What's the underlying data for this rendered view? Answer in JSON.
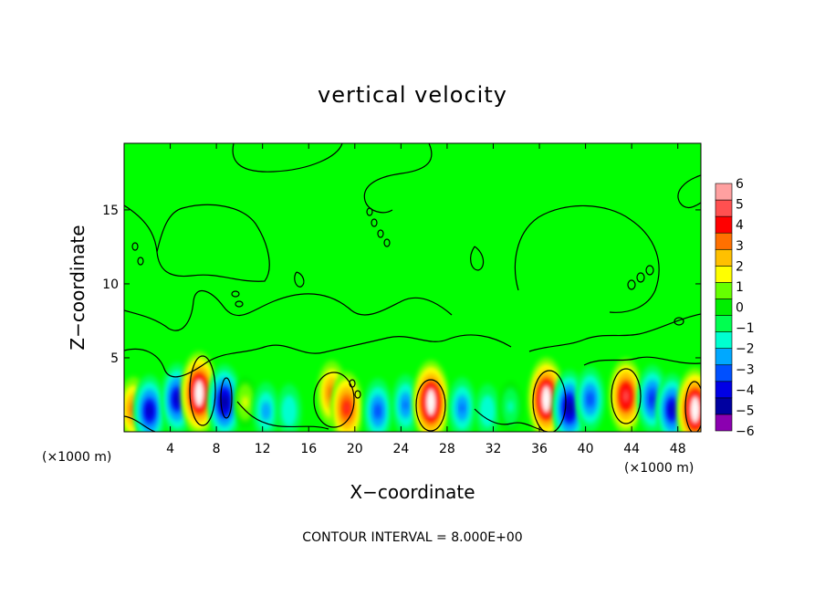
{
  "chart_data": {
    "type": "heatmap",
    "title": "vertical velocity",
    "xlabel": "X−coordinate",
    "ylabel": "Z−coordinate",
    "x_unit_left": "(×1000 m)",
    "x_unit_right": "(×1000 m)",
    "xlim": [
      0,
      50
    ],
    "ylim": [
      0,
      19.5
    ],
    "x_ticks": [
      4,
      8,
      12,
      16,
      20,
      24,
      28,
      32,
      36,
      40,
      44,
      48
    ],
    "x_tick_labels": [
      "4",
      "8",
      "12",
      "16",
      "20",
      "24",
      "28",
      "32",
      "36",
      "40",
      "44",
      "48"
    ],
    "y_ticks": [
      5,
      10,
      15
    ],
    "y_tick_labels": [
      "5",
      "10",
      "15"
    ],
    "contour_note": "CONTOUR INTERVAL = 8.000E+00",
    "colorbar": {
      "min": -6,
      "max": 6,
      "tick_labels": [
        "6",
        "5",
        "4",
        "3",
        "2",
        "1",
        "0",
        "−1",
        "−2",
        "−3",
        "−4",
        "−5",
        "−6"
      ],
      "colors": [
        "#8b00b0",
        "#0000a0",
        "#0000e6",
        "#0050ff",
        "#00a8ff",
        "#00ffd0",
        "#00ff50",
        "#00ee00",
        "#66ff00",
        "#ffff00",
        "#ffc000",
        "#ff7000",
        "#ff0000",
        "#ff5050",
        "#ffa0a0"
      ]
    },
    "background_value": 0,
    "features": [
      {
        "x": 0.8,
        "z": 1.5,
        "value": 3.5
      },
      {
        "x": 2.2,
        "z": 1.4,
        "value": -4.5
      },
      {
        "x": 4.6,
        "z": 2.2,
        "value": -4.5
      },
      {
        "x": 6.5,
        "z": 2.6,
        "value": 6
      },
      {
        "x": 8.7,
        "z": 2.0,
        "value": -5
      },
      {
        "x": 10.5,
        "z": 2.0,
        "value": 1.5
      },
      {
        "x": 12.3,
        "z": 1.4,
        "value": -2.5
      },
      {
        "x": 14.3,
        "z": 1.4,
        "value": -2
      },
      {
        "x": 18.0,
        "z": 2.6,
        "value": 3.5
      },
      {
        "x": 19.3,
        "z": 1.6,
        "value": 4.5
      },
      {
        "x": 22.0,
        "z": 1.4,
        "value": -3.5
      },
      {
        "x": 24.4,
        "z": 1.8,
        "value": -3
      },
      {
        "x": 26.6,
        "z": 2.0,
        "value": 6
      },
      {
        "x": 29.3,
        "z": 1.6,
        "value": -3
      },
      {
        "x": 31.5,
        "z": 1.4,
        "value": -2
      },
      {
        "x": 33.5,
        "z": 1.7,
        "value": -1.5
      },
      {
        "x": 36.6,
        "z": 2.2,
        "value": 6
      },
      {
        "x": 38.6,
        "z": 1.6,
        "value": -5
      },
      {
        "x": 40.4,
        "z": 2.2,
        "value": -3.5
      },
      {
        "x": 43.5,
        "z": 2.4,
        "value": 5
      },
      {
        "x": 45.8,
        "z": 2.2,
        "value": -4
      },
      {
        "x": 47.5,
        "z": 1.5,
        "value": -4.5
      },
      {
        "x": 49.5,
        "z": 1.5,
        "value": 6
      }
    ]
  }
}
